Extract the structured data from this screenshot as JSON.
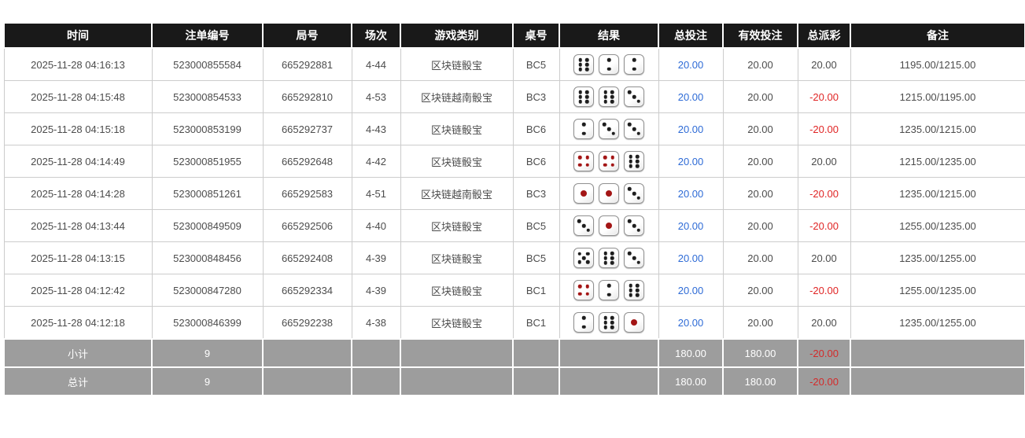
{
  "colors": {
    "header_bg": "#191919",
    "summary_bg": "#9d9d9d",
    "link_blue": "#2e6bd6",
    "negative_red": "#e02525",
    "pip_black": "#1e1e1e",
    "pip_red": "#a31515"
  },
  "table": {
    "headers": [
      {
        "label": "时间"
      },
      {
        "label": "注单编号"
      },
      {
        "label": "局号"
      },
      {
        "label": "场次"
      },
      {
        "label": "游戏类别"
      },
      {
        "label": "桌号"
      },
      {
        "label": "结果"
      },
      {
        "label": "总投注"
      },
      {
        "label": "有效投注"
      },
      {
        "label": "总派彩"
      },
      {
        "label": "备注"
      }
    ],
    "rows": [
      {
        "time": "2025-11-28 04:16:13",
        "bet_id": "523000855584",
        "round": "665292881",
        "session": "4-44",
        "game": "区块链骰宝",
        "table_no": "BC5",
        "dice": [
          6,
          2,
          2
        ],
        "total_bet": "20.00",
        "valid_bet": "20.00",
        "payout": "20.00",
        "remark": "1195.00/1215.00"
      },
      {
        "time": "2025-11-28 04:15:48",
        "bet_id": "523000854533",
        "round": "665292810",
        "session": "4-53",
        "game": "区块链越南骰宝",
        "table_no": "BC3",
        "dice": [
          6,
          6,
          3
        ],
        "total_bet": "20.00",
        "valid_bet": "20.00",
        "payout": "-20.00",
        "remark": "1215.00/1195.00"
      },
      {
        "time": "2025-11-28 04:15:18",
        "bet_id": "523000853199",
        "round": "665292737",
        "session": "4-43",
        "game": "区块链骰宝",
        "table_no": "BC6",
        "dice": [
          2,
          3,
          3
        ],
        "total_bet": "20.00",
        "valid_bet": "20.00",
        "payout": "-20.00",
        "remark": "1235.00/1215.00"
      },
      {
        "time": "2025-11-28 04:14:49",
        "bet_id": "523000851955",
        "round": "665292648",
        "session": "4-42",
        "game": "区块链骰宝",
        "table_no": "BC6",
        "dice": [
          4,
          4,
          6
        ],
        "total_bet": "20.00",
        "valid_bet": "20.00",
        "payout": "20.00",
        "remark": "1215.00/1235.00"
      },
      {
        "time": "2025-11-28 04:14:28",
        "bet_id": "523000851261",
        "round": "665292583",
        "session": "4-51",
        "game": "区块链越南骰宝",
        "table_no": "BC3",
        "dice": [
          1,
          1,
          3
        ],
        "total_bet": "20.00",
        "valid_bet": "20.00",
        "payout": "-20.00",
        "remark": "1235.00/1215.00"
      },
      {
        "time": "2025-11-28 04:13:44",
        "bet_id": "523000849509",
        "round": "665292506",
        "session": "4-40",
        "game": "区块链骰宝",
        "table_no": "BC5",
        "dice": [
          3,
          1,
          3
        ],
        "total_bet": "20.00",
        "valid_bet": "20.00",
        "payout": "-20.00",
        "remark": "1255.00/1235.00"
      },
      {
        "time": "2025-11-28 04:13:15",
        "bet_id": "523000848456",
        "round": "665292408",
        "session": "4-39",
        "game": "区块链骰宝",
        "table_no": "BC5",
        "dice": [
          5,
          6,
          3
        ],
        "total_bet": "20.00",
        "valid_bet": "20.00",
        "payout": "20.00",
        "remark": "1235.00/1255.00"
      },
      {
        "time": "2025-11-28 04:12:42",
        "bet_id": "523000847280",
        "round": "665292334",
        "session": "4-39",
        "game": "区块链骰宝",
        "table_no": "BC1",
        "dice": [
          4,
          2,
          6
        ],
        "total_bet": "20.00",
        "valid_bet": "20.00",
        "payout": "-20.00",
        "remark": "1255.00/1235.00"
      },
      {
        "time": "2025-11-28 04:12:18",
        "bet_id": "523000846399",
        "round": "665292238",
        "session": "4-38",
        "game": "区块链骰宝",
        "table_no": "BC1",
        "dice": [
          2,
          6,
          1
        ],
        "total_bet": "20.00",
        "valid_bet": "20.00",
        "payout": "20.00",
        "remark": "1235.00/1255.00"
      }
    ],
    "summary_rows": [
      {
        "label": "小计",
        "count": "9",
        "round": "",
        "session": "",
        "game": "",
        "table_no": "",
        "result": "",
        "total_bet": "180.00",
        "valid_bet": "180.00",
        "payout": "-20.00",
        "remark": ""
      },
      {
        "label": "总计",
        "count": "9",
        "round": "",
        "session": "",
        "game": "",
        "table_no": "",
        "result": "",
        "total_bet": "180.00",
        "valid_bet": "180.00",
        "payout": "-20.00",
        "remark": ""
      }
    ]
  }
}
